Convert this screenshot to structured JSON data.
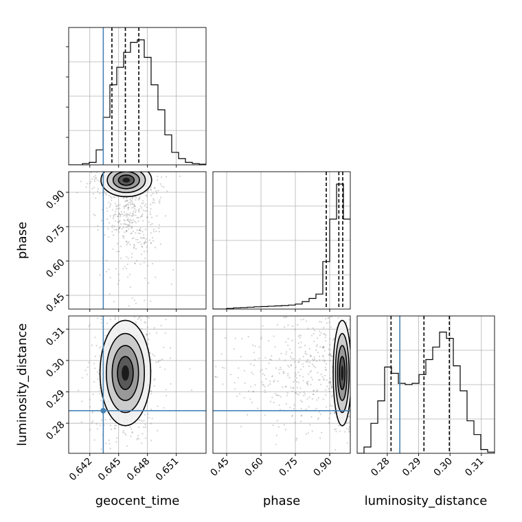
{
  "chart_data": {
    "type": "corner",
    "parameters": [
      "geocent_time",
      "phase",
      "luminosity_distance"
    ],
    "axis_titles": {
      "bottom": [
        "geocent_time",
        "phase",
        "luminosity_distance"
      ],
      "left": [
        "",
        "phase",
        "luminosity_distance"
      ]
    },
    "tick_labels": {
      "geocent_time": [
        "0.642",
        "0.645",
        "0.648",
        "0.651"
      ],
      "phase": [
        "0.45",
        "0.60",
        "0.75",
        "0.90"
      ],
      "luminosity_distance": [
        "0.28",
        "0.29",
        "0.30",
        "0.31"
      ]
    },
    "ranges": {
      "geocent_time": [
        0.6398,
        0.6541
      ],
      "phase": [
        0.39,
        0.99
      ],
      "luminosity_distance": [
        0.2704,
        0.3142
      ]
    },
    "ticks": {
      "geocent_time": [
        0.642,
        0.645,
        0.648,
        0.651
      ],
      "phase": [
        0.45,
        0.6,
        0.75,
        0.9
      ],
      "luminosity_distance": [
        0.28,
        0.29,
        0.3,
        0.31
      ]
    },
    "truths": {
      "geocent_time": 0.6434,
      "luminosity_distance": 0.284
    },
    "quantiles": {
      "geocent_time": [
        0.6443,
        0.6457,
        0.6471
      ],
      "phase": [
        0.885,
        0.94,
        0.957
      ],
      "luminosity_distance": [
        0.2812,
        0.2917,
        0.2998
      ]
    },
    "histograms": {
      "geocent_time": {
        "bin_start": 0.6398,
        "bin_width": 0.000715,
        "counts": [
          0,
          0,
          0.01,
          0.02,
          0.12,
          0.38,
          0.64,
          0.78,
          0.9,
          0.98,
          1.0,
          0.86,
          0.64,
          0.44,
          0.24,
          0.1,
          0.05,
          0.02,
          0.01,
          0.005
        ]
      },
      "phase": {
        "bin_start": 0.39,
        "bin_width": 0.03,
        "counts": [
          0,
          0,
          0.005,
          0.01,
          0.012,
          0.015,
          0.018,
          0.02,
          0.023,
          0.025,
          0.028,
          0.032,
          0.04,
          0.06,
          0.085,
          0.12,
          0.38,
          0.72,
          1.0,
          0.72
        ]
      },
      "luminosity_distance": {
        "bin_start": 0.2704,
        "bin_width": 0.00219,
        "counts": [
          0,
          0.05,
          0.24,
          0.42,
          0.69,
          0.64,
          0.56,
          0.55,
          0.56,
          0.63,
          0.75,
          0.85,
          0.97,
          0.92,
          0.7,
          0.5,
          0.26,
          0.15,
          0.03,
          0.01
        ]
      }
    },
    "density_2d": {
      "geocent_time_vs_phase": {
        "x": "geocent_time",
        "y": "phase",
        "peak_x": 0.6458,
        "peak_y": 0.953,
        "spread_x": 0.0011,
        "spread_y": 0.03,
        "tail": "low-phase tail toward 0.45"
      },
      "geocent_time_vs_luminosity_distance": {
        "x": "geocent_time",
        "y": "luminosity_distance",
        "peak_x": 0.6457,
        "peak_y": 0.296,
        "spread_x": 0.0011,
        "spread_y": 0.007
      },
      "phase_vs_luminosity_distance": {
        "x": "phase",
        "y": "luminosity_distance",
        "peak_x": 0.955,
        "peak_y": 0.296,
        "spread_x": 0.03,
        "spread_y": 0.007,
        "tail": "low-phase tail toward 0.45"
      }
    },
    "colors": {
      "truth": "#4682b4",
      "hist": "#000000",
      "quantile": "#000000",
      "grid": "#b0b0b0",
      "points": "#7f7f7f",
      "contour_fill": [
        "#f0f0f0",
        "#c6c6c6",
        "#8f8f8f",
        "#4d4d4d",
        "#111111"
      ]
    }
  }
}
